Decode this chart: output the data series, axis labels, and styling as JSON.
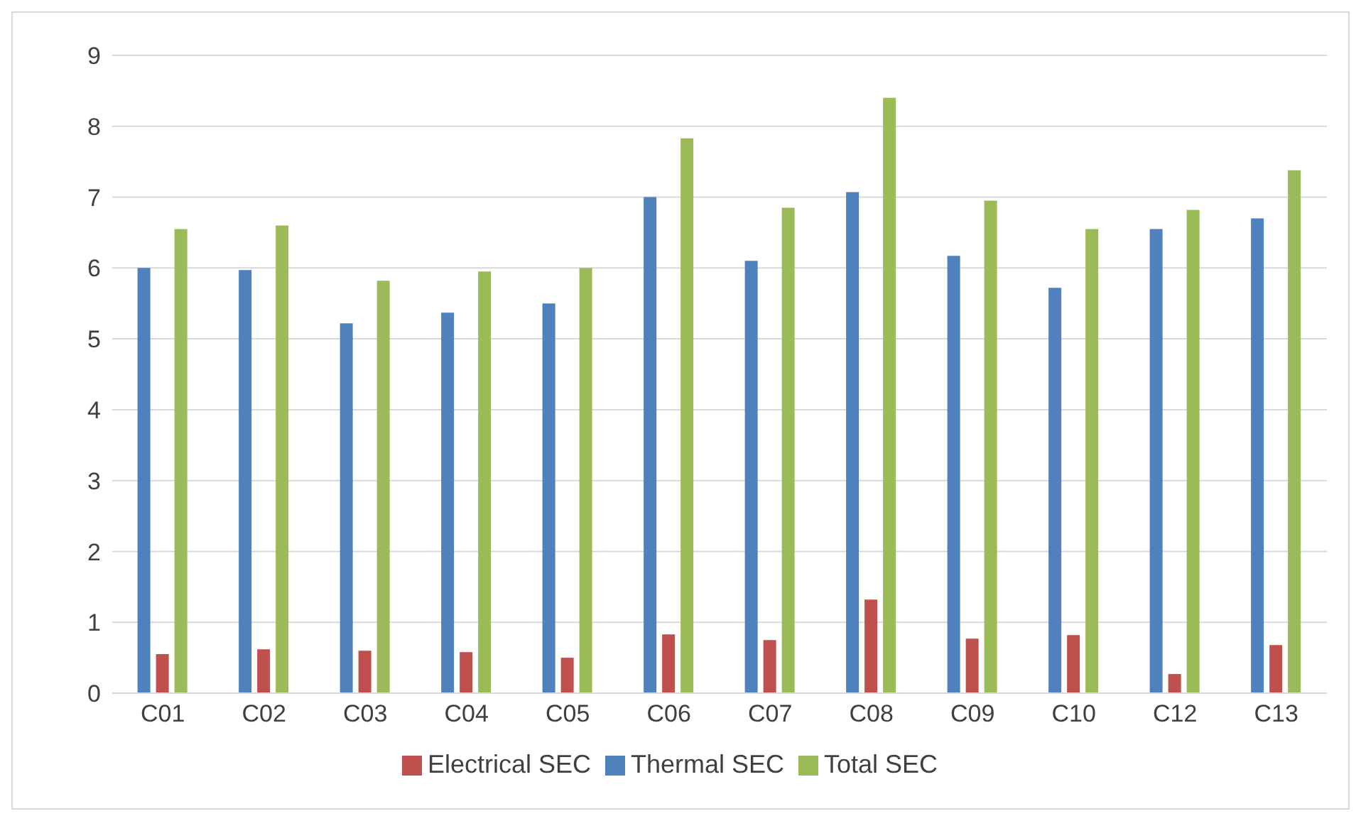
{
  "chart_data": {
    "type": "bar",
    "categories": [
      "C01",
      "C02",
      "C03",
      "C04",
      "C05",
      "C06",
      "C07",
      "C08",
      "C09",
      "C10",
      "C12",
      "C13"
    ],
    "series": [
      {
        "name": "Thermal SEC",
        "color": "#4f81bd",
        "values": [
          6.0,
          5.97,
          5.22,
          5.37,
          5.5,
          7.0,
          6.1,
          7.07,
          6.17,
          5.72,
          6.55,
          6.7
        ]
      },
      {
        "name": "Electrical SEC",
        "color": "#c0504d",
        "values": [
          0.55,
          0.62,
          0.6,
          0.58,
          0.5,
          0.83,
          0.75,
          1.32,
          0.77,
          0.82,
          0.27,
          0.68
        ]
      },
      {
        "name": "Total SEC",
        "color": "#9bbb59",
        "values": [
          6.55,
          6.6,
          5.82,
          5.95,
          6.0,
          7.83,
          6.85,
          8.4,
          6.95,
          6.55,
          6.82,
          7.38
        ]
      }
    ],
    "ylim": [
      0,
      9
    ],
    "yticks": [
      0,
      1,
      2,
      3,
      4,
      5,
      6,
      7,
      8,
      9
    ],
    "grid": "y",
    "legend": "bottom"
  }
}
